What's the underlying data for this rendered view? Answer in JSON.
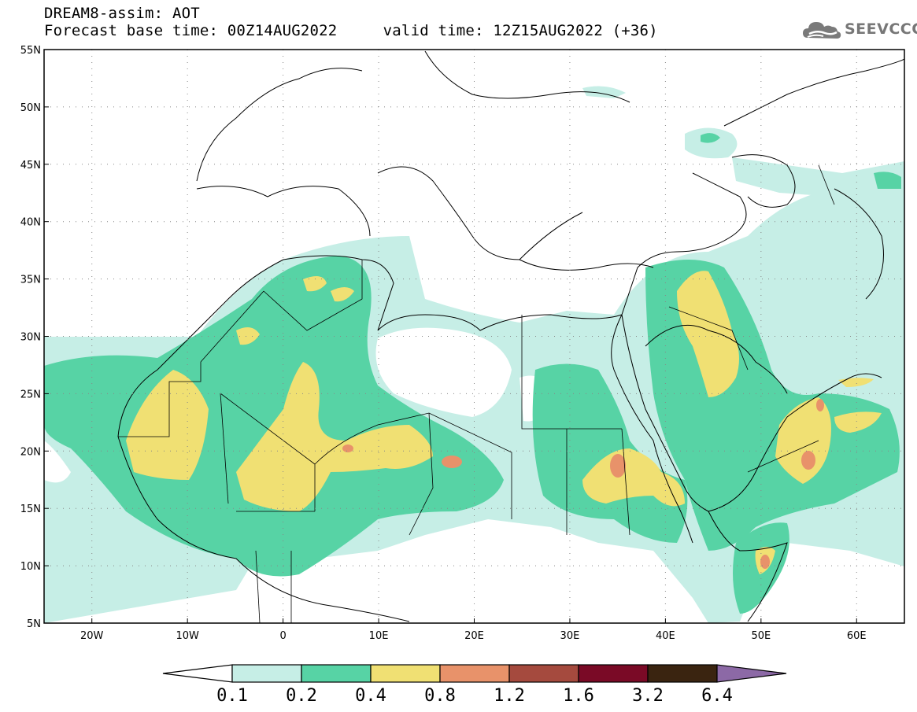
{
  "header": {
    "line1": "DREAM8-assim: AOT",
    "line2_base": "Forecast base time: 00Z14AUG2022",
    "line2_valid": "valid time: 12Z15AUG2022 (+36)"
  },
  "logo": {
    "text": "SEEVCCC",
    "icon": "cloud-icon"
  },
  "map": {
    "lon_range": [
      -25,
      65
    ],
    "lat_range": [
      5,
      55
    ],
    "lat_ticks": [
      "5N",
      "10N",
      "15N",
      "20N",
      "25N",
      "30N",
      "35N",
      "40N",
      "45N",
      "50N",
      "55N"
    ],
    "lon_ticks": [
      "20W",
      "10W",
      "0",
      "10E",
      "20E",
      "30E",
      "40E",
      "50E",
      "60E"
    ]
  },
  "colorbar": {
    "labels": [
      "0.1",
      "0.2",
      "0.4",
      "0.8",
      "1.2",
      "1.6",
      "3.2",
      "6.4"
    ],
    "colors": [
      "#c6eee6",
      "#57d3a5",
      "#f0e073",
      "#e8926a",
      "#a54a3e",
      "#7a0a26",
      "#3a2410",
      "#8c69a6"
    ],
    "under_color": "#ffffff",
    "over_color": "#8c69a6"
  }
}
